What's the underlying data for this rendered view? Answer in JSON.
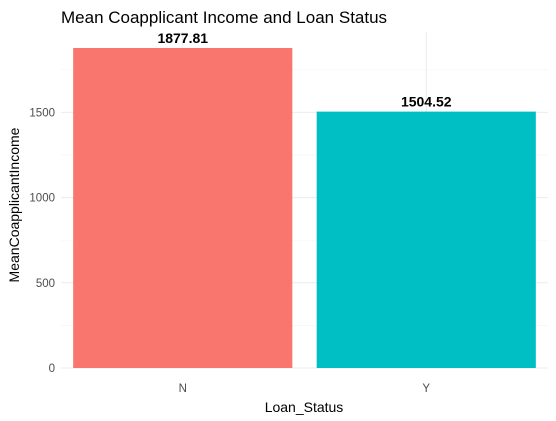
{
  "chart_data": {
    "type": "bar",
    "title": "Mean Coapplicant Income and Loan Status",
    "xlabel": "Loan_Status",
    "ylabel": "MeanCoapplicantIncome",
    "categories": [
      "N",
      "Y"
    ],
    "values": [
      1877.81,
      1504.52
    ],
    "data_labels": [
      "1877.81",
      "1504.52"
    ],
    "colors": [
      "#F8766D",
      "#00BFC4"
    ],
    "y_ticks": [
      0,
      500,
      1000,
      1500
    ],
    "y_tick_labels": [
      "0",
      "500",
      "1000",
      "1500"
    ],
    "ylim": [
      0,
      1971.7
    ],
    "grid": true,
    "legend": "none"
  }
}
